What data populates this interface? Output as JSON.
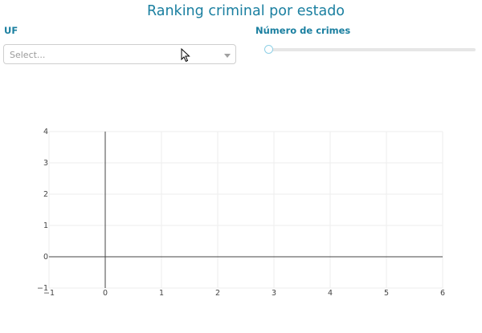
{
  "page": {
    "title": "Ranking criminal por estado"
  },
  "uf": {
    "label": "UF",
    "placeholder": "Select..."
  },
  "crimes": {
    "label": "Número de crimes",
    "value": 0
  },
  "chart_data": {
    "type": "scatter",
    "series": [],
    "xlim": [
      -1,
      6
    ],
    "ylim": [
      -1,
      4
    ],
    "x_ticks": [
      "−1",
      "0",
      "1",
      "2",
      "3",
      "4",
      "5",
      "6"
    ],
    "y_ticks": [
      "−1",
      "0",
      "1",
      "2",
      "3",
      "4"
    ],
    "grid": true
  }
}
